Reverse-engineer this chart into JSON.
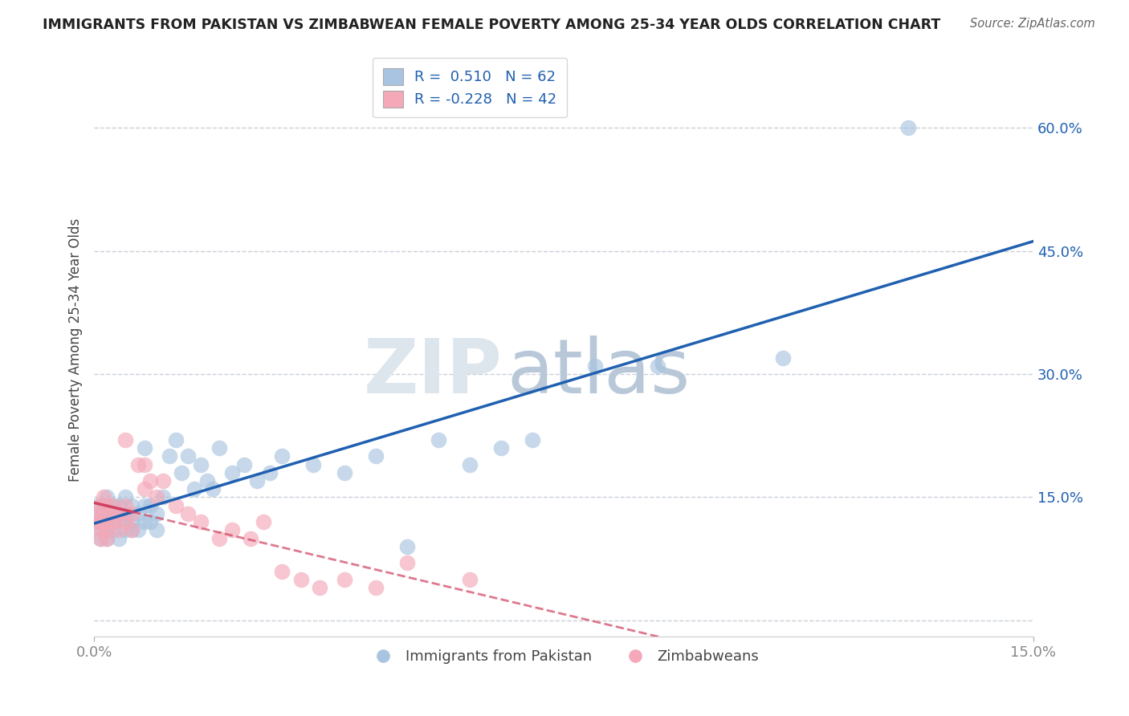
{
  "title": "IMMIGRANTS FROM PAKISTAN VS ZIMBABWEAN FEMALE POVERTY AMONG 25-34 YEAR OLDS CORRELATION CHART",
  "source": "Source: ZipAtlas.com",
  "ylabel": "Female Poverty Among 25-34 Year Olds",
  "y_tick_values": [
    0.0,
    0.15,
    0.3,
    0.45,
    0.6
  ],
  "y_tick_labels": [
    "",
    "15.0%",
    "30.0%",
    "45.0%",
    "60.0%"
  ],
  "x_range": [
    0.0,
    0.15
  ],
  "y_range": [
    -0.02,
    0.68
  ],
  "blue_color": "#a8c4e0",
  "pink_color": "#f4a8b8",
  "blue_line_color": "#2060b0",
  "pink_line_color": "#d04060",
  "watermark_zip": "ZIP",
  "watermark_atlas": "atlas",
  "blue_scatter_x": [
    0.0005,
    0.001,
    0.001,
    0.001,
    0.001,
    0.0015,
    0.0015,
    0.002,
    0.002,
    0.002,
    0.002,
    0.002,
    0.003,
    0.003,
    0.003,
    0.003,
    0.004,
    0.004,
    0.004,
    0.005,
    0.005,
    0.005,
    0.005,
    0.006,
    0.006,
    0.006,
    0.007,
    0.007,
    0.008,
    0.008,
    0.008,
    0.009,
    0.009,
    0.01,
    0.01,
    0.011,
    0.012,
    0.013,
    0.014,
    0.015,
    0.016,
    0.017,
    0.018,
    0.019,
    0.02,
    0.022,
    0.024,
    0.026,
    0.028,
    0.03,
    0.035,
    0.04,
    0.045,
    0.05,
    0.055,
    0.06,
    0.065,
    0.07,
    0.08,
    0.09,
    0.11,
    0.13
  ],
  "blue_scatter_y": [
    0.14,
    0.13,
    0.12,
    0.11,
    0.1,
    0.14,
    0.12,
    0.13,
    0.11,
    0.1,
    0.15,
    0.12,
    0.13,
    0.11,
    0.14,
    0.12,
    0.1,
    0.13,
    0.14,
    0.12,
    0.11,
    0.15,
    0.13,
    0.11,
    0.14,
    0.12,
    0.13,
    0.11,
    0.14,
    0.12,
    0.21,
    0.14,
    0.12,
    0.13,
    0.11,
    0.15,
    0.2,
    0.22,
    0.18,
    0.2,
    0.16,
    0.19,
    0.17,
    0.16,
    0.21,
    0.18,
    0.19,
    0.17,
    0.18,
    0.2,
    0.19,
    0.18,
    0.2,
    0.09,
    0.22,
    0.19,
    0.21,
    0.22,
    0.31,
    0.31,
    0.32,
    0.6
  ],
  "pink_scatter_x": [
    0.0003,
    0.0005,
    0.001,
    0.001,
    0.001,
    0.001,
    0.0015,
    0.0015,
    0.002,
    0.002,
    0.002,
    0.002,
    0.003,
    0.003,
    0.003,
    0.004,
    0.004,
    0.005,
    0.005,
    0.005,
    0.006,
    0.006,
    0.007,
    0.008,
    0.008,
    0.009,
    0.01,
    0.011,
    0.013,
    0.015,
    0.017,
    0.02,
    0.022,
    0.025,
    0.027,
    0.03,
    0.033,
    0.036,
    0.04,
    0.045,
    0.05,
    0.06
  ],
  "pink_scatter_y": [
    0.13,
    0.12,
    0.14,
    0.12,
    0.11,
    0.1,
    0.15,
    0.13,
    0.14,
    0.12,
    0.1,
    0.11,
    0.13,
    0.12,
    0.14,
    0.13,
    0.11,
    0.14,
    0.12,
    0.22,
    0.13,
    0.11,
    0.19,
    0.16,
    0.19,
    0.17,
    0.15,
    0.17,
    0.14,
    0.13,
    0.12,
    0.1,
    0.11,
    0.1,
    0.12,
    0.06,
    0.05,
    0.04,
    0.05,
    0.04,
    0.07,
    0.05
  ],
  "grid_color": "#c8d0d8",
  "background_color": "#ffffff",
  "legend_label1": "R =  0.510   N = 62",
  "legend_label2": "R = -0.228   N = 42",
  "bottom_label1": "Immigrants from Pakistan",
  "bottom_label2": "Zimbabweans"
}
